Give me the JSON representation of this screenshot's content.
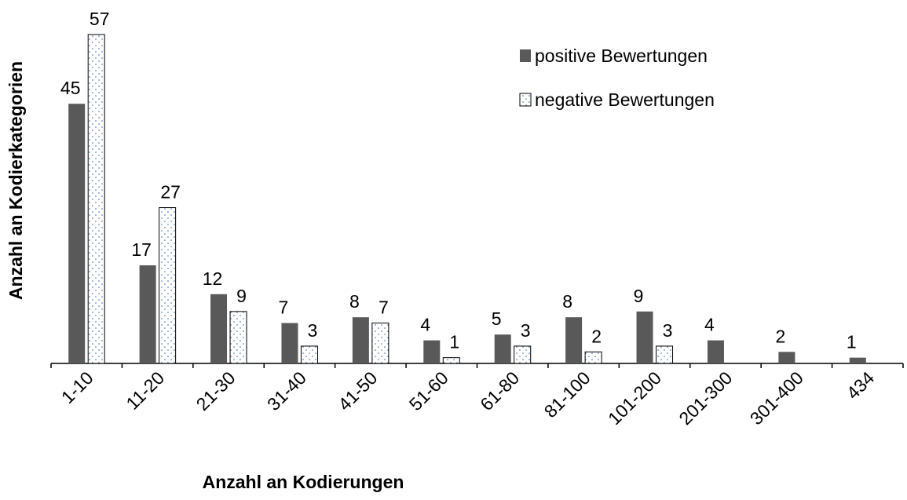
{
  "chart_data": {
    "type": "bar",
    "x_label": "Anzahl an Kodierungen",
    "y_label": "Anzahl an Kodierkategorien",
    "categories": [
      "1-10",
      "11-20",
      "21-30",
      "31-40",
      "41-50",
      "51-60",
      "61-80",
      "81-100",
      "101-200",
      "201-300",
      "301-400",
      "434"
    ],
    "series": [
      {
        "name": "positive Bewertungen",
        "color": "#595959",
        "values": [
          45,
          17,
          12,
          7,
          8,
          4,
          5,
          8,
          9,
          4,
          2,
          1
        ]
      },
      {
        "name": "negative Bewertungen",
        "color": "#ffffff",
        "values": [
          57,
          27,
          9,
          3,
          7,
          1,
          3,
          2,
          3,
          null,
          null,
          null
        ]
      }
    ],
    "ylim": [
      0,
      57
    ],
    "legend": "top-right"
  }
}
